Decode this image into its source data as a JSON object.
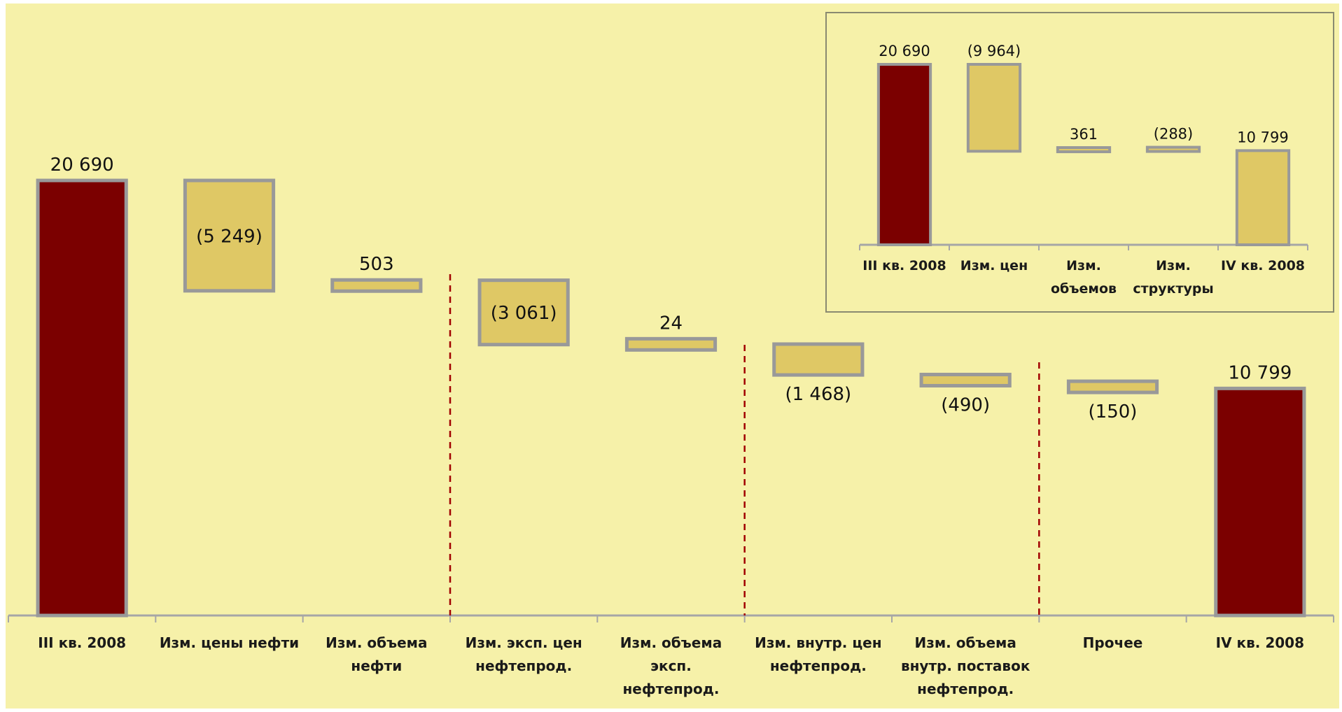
{
  "colors": {
    "background": "#f6f1a9",
    "total_bar": "#7b0000",
    "change_bar": "#dfc865",
    "bar_border": "#999999",
    "axis": "#a6a6a6",
    "separator": "#a10000"
  },
  "chart_data": [
    {
      "type": "waterfall",
      "title": "",
      "categories": [
        [
          "III кв. 2008"
        ],
        [
          "Изм. цены нефти"
        ],
        [
          "Изм. объема",
          "нефти"
        ],
        [
          "Изм. эксп. цен",
          "нефтепрод."
        ],
        [
          "Изм. объема",
          "эксп.",
          "нефтепрод."
        ],
        [
          "Изм. внутр. цен",
          "нефтепрод."
        ],
        [
          "Изм. объема",
          "внутр. поставок",
          "нефтепрод."
        ],
        [
          "Прочее"
        ],
        [
          "IV кв. 2008"
        ]
      ],
      "values": [
        20690,
        -5249,
        503,
        -3061,
        24,
        -1468,
        -490,
        -150,
        10799
      ],
      "labels": [
        "20 690",
        "(5 249)",
        "503",
        "(3 061)",
        "24",
        "(1 468)",
        "(490)",
        "(150)",
        "10 799"
      ],
      "kinds": [
        "total",
        "change",
        "change",
        "change",
        "change",
        "change",
        "change",
        "change",
        "total"
      ],
      "group_separators_after": [
        2,
        4,
        6
      ],
      "ylim": [
        0,
        20690
      ]
    },
    {
      "type": "waterfall",
      "title": "",
      "categories": [
        [
          "III кв. 2008"
        ],
        [
          "Изм. цен"
        ],
        [
          "Изм.",
          "объемов"
        ],
        [
          "Изм.",
          "структуры"
        ],
        [
          "IV кв. 2008"
        ]
      ],
      "values": [
        20690,
        -9964,
        361,
        -288,
        10799
      ],
      "labels": [
        "20 690",
        "(9 964)",
        "361",
        "(288)",
        "10 799"
      ],
      "kinds": [
        "total",
        "change",
        "change",
        "change",
        "total"
      ],
      "total_colors": [
        "#7b0000",
        "#dfc865"
      ],
      "ylim": [
        0,
        20690
      ]
    }
  ]
}
